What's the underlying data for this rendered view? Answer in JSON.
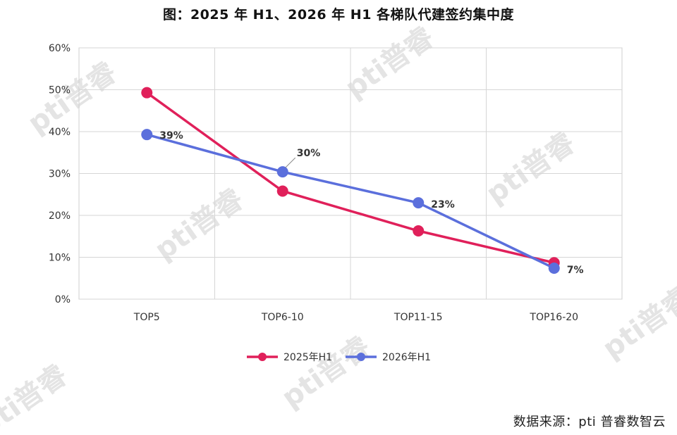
{
  "title": "图：2025 年 H1、2026 年 H1 各梯队代建签约集中度",
  "source": "数据来源：pti 普睿数智云",
  "watermark": "pti普睿",
  "chart_data": {
    "type": "line",
    "categories": [
      "TOP5",
      "TOP6-10",
      "TOP11-15",
      "TOP16-20"
    ],
    "ylim": [
      0,
      60
    ],
    "yticks": [
      0,
      10,
      20,
      30,
      40,
      50,
      60
    ],
    "ytick_labels": [
      "0%",
      "10%",
      "20%",
      "30%",
      "40%",
      "50%",
      "60%"
    ],
    "grid": true,
    "legend": "bottom-center",
    "series": [
      {
        "name": "2025年H1",
        "color": "#e0205a",
        "values": [
          49.3,
          25.8,
          16.3,
          8.7
        ],
        "labels": []
      },
      {
        "name": "2026年H1",
        "color": "#5b6fdc",
        "values": [
          39.3,
          30.4,
          23.0,
          7.4
        ],
        "labels": [
          "39%",
          "30%",
          "23%",
          "7%"
        ]
      }
    ]
  }
}
